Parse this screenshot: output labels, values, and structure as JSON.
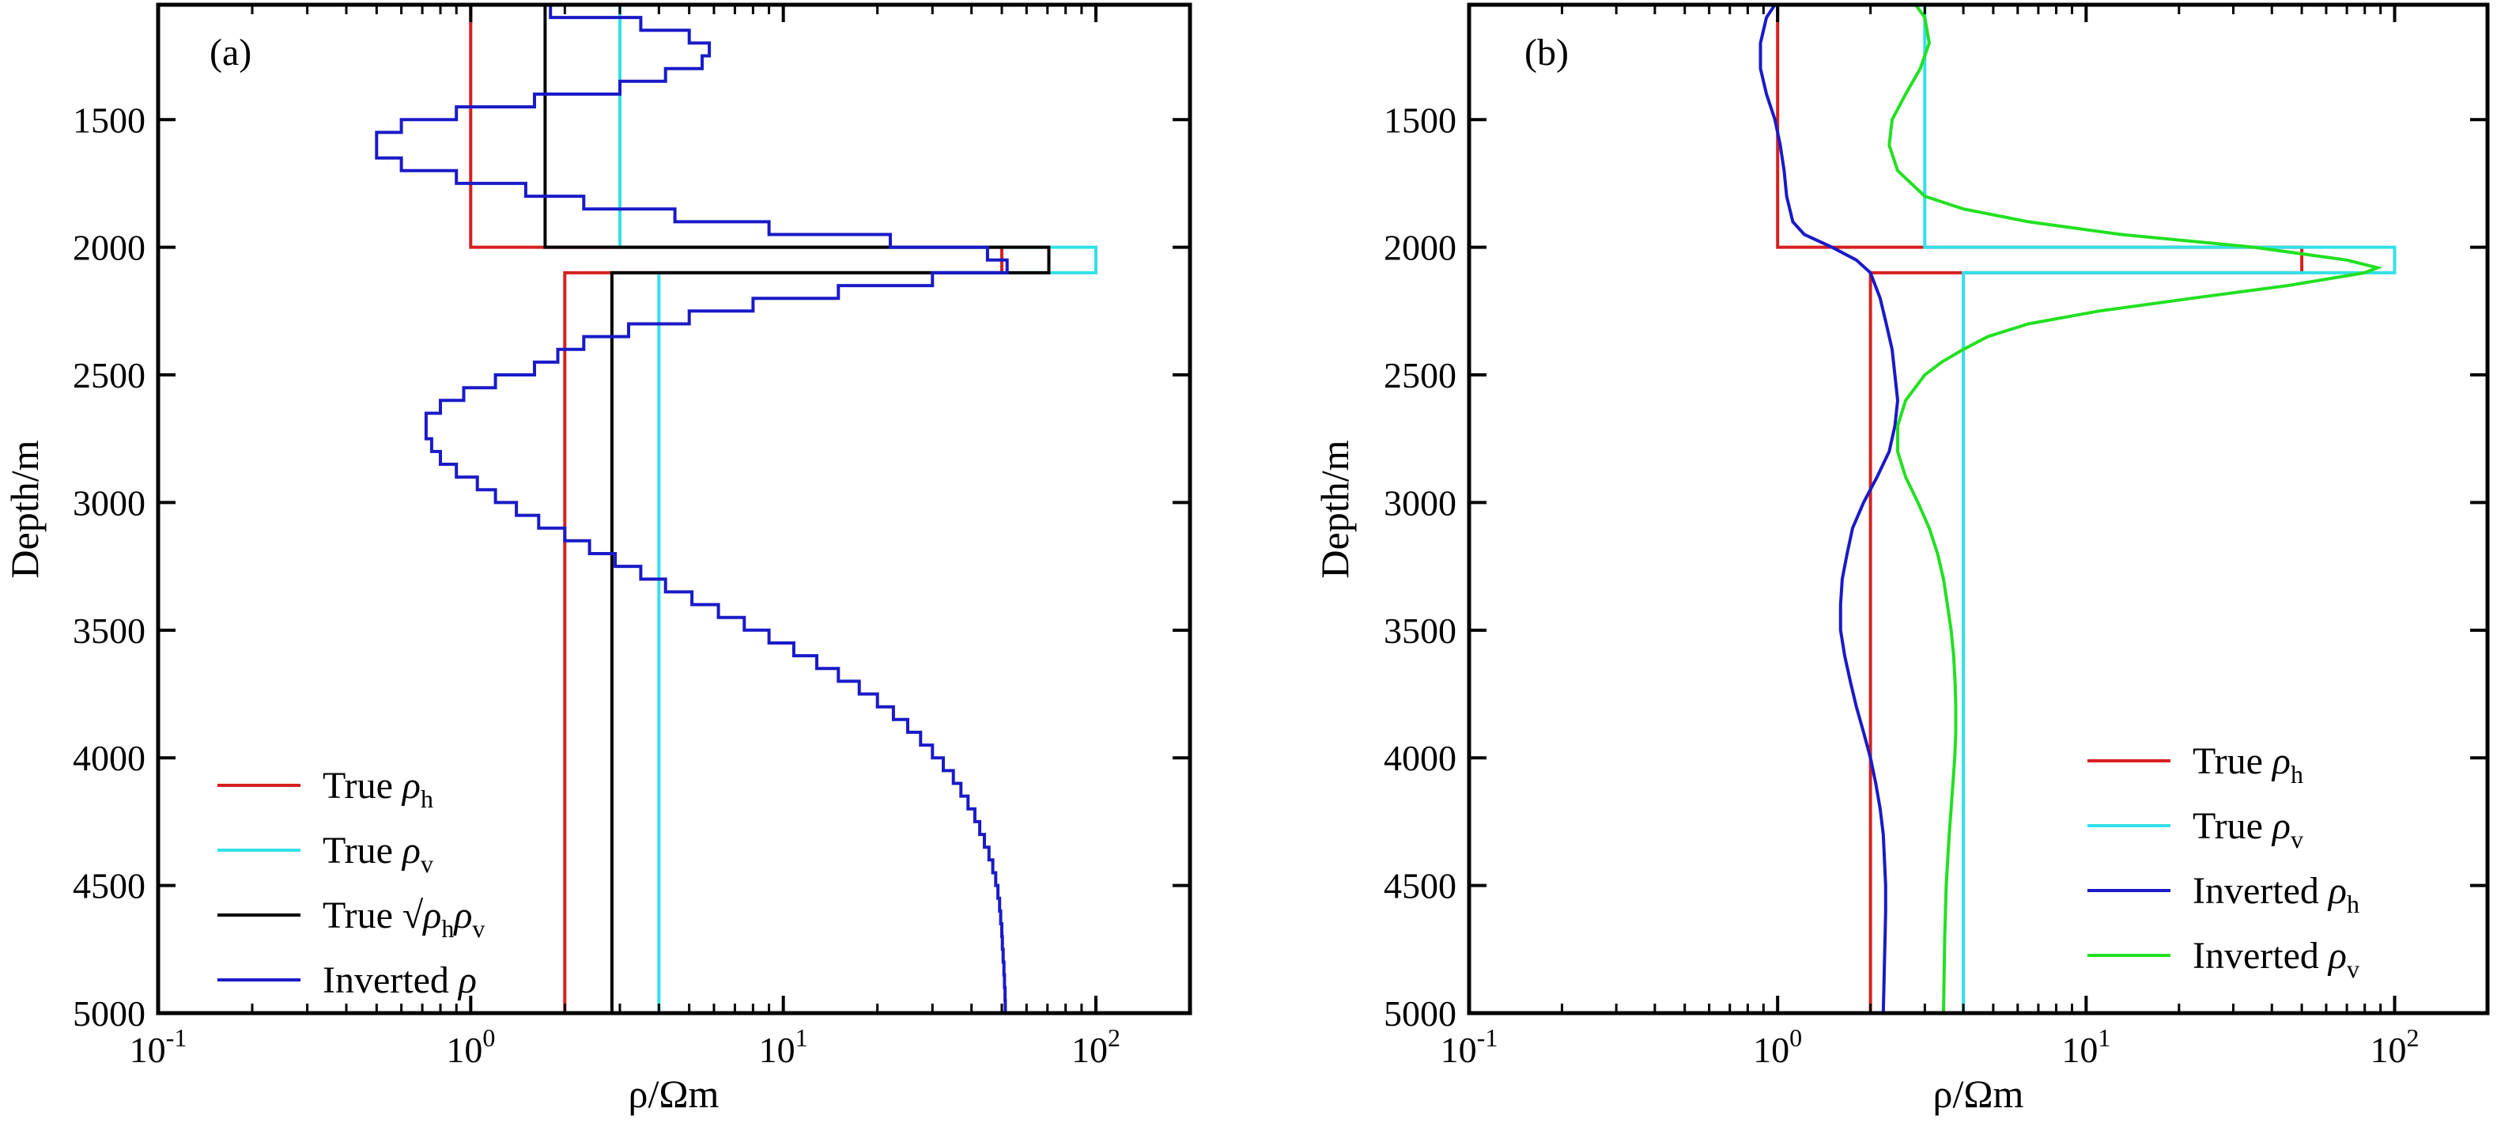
{
  "figure": {
    "panels": [
      {
        "id": "a",
        "panel_label": "(a)",
        "ylabel": "Depth/m",
        "xlabel": "ρ/Ωm",
        "ytick_labels": [
          "1500",
          "2000",
          "2500",
          "3000",
          "3500",
          "4000",
          "4500",
          "5000"
        ],
        "xtick_labels": [
          {
            "base": "10",
            "exp": "-1"
          },
          {
            "base": "10",
            "exp": "0"
          },
          {
            "base": "10",
            "exp": "1"
          },
          {
            "base": "10",
            "exp": "2"
          }
        ],
        "legend": [
          {
            "prefix": "True ",
            "sym": "ρ",
            "sub": "h",
            "color": "#d62020"
          },
          {
            "prefix": "True ",
            "sym": "ρ",
            "sub": "v",
            "color": "#33e0e8"
          },
          {
            "prefix": "True ",
            "sqrt": "√",
            "sym": "ρ",
            "sub": "h",
            "sym2": "ρ",
            "sub2": "v",
            "color": "#000000"
          },
          {
            "prefix": "Inverted ",
            "sym": "ρ",
            "sub": "",
            "color": "#1a1ac8"
          }
        ]
      },
      {
        "id": "b",
        "panel_label": "(b)",
        "ylabel": "Depth/m",
        "xlabel": "ρ/Ωm",
        "ytick_labels": [
          "1500",
          "2000",
          "2500",
          "3000",
          "3500",
          "4000",
          "4500",
          "5000"
        ],
        "xtick_labels": [
          {
            "base": "10",
            "exp": "-1"
          },
          {
            "base": "10",
            "exp": "0"
          },
          {
            "base": "10",
            "exp": "1"
          },
          {
            "base": "10",
            "exp": "2"
          }
        ],
        "legend": [
          {
            "prefix": "True ",
            "sym": "ρ",
            "sub": "h",
            "color": "#d62020"
          },
          {
            "prefix": "True ",
            "sym": "ρ",
            "sub": "v",
            "color": "#33e0e8"
          },
          {
            "prefix": "Inverted ",
            "sym": "ρ",
            "sub": "h",
            "color": "#1a1ac8"
          },
          {
            "prefix": "Inverted ",
            "sym": "ρ",
            "sub": "v",
            "color": "#22e022"
          }
        ]
      }
    ]
  },
  "chart_data": [
    {
      "type": "line",
      "title": "(a)",
      "xlabel": "ρ/Ωm",
      "ylabel": "Depth/m",
      "xscale": "log",
      "xlim": [
        0.1,
        200
      ],
      "ylim": [
        1050,
        5000
      ],
      "y_inverted": true,
      "legend_position": "bottom-left",
      "xticks": [
        0.1,
        1,
        10,
        100
      ],
      "yticks": [
        1500,
        2000,
        2500,
        3000,
        3500,
        4000,
        4500,
        5000
      ],
      "series": [
        {
          "name": "True ρh",
          "color": "#d62020",
          "step": true,
          "depth": [
            1050,
            2000,
            2000,
            2100,
            2100,
            5000
          ],
          "rho": [
            1,
            1,
            50,
            50,
            2,
            2
          ]
        },
        {
          "name": "True ρv",
          "color": "#33e0e8",
          "step": true,
          "depth": [
            1050,
            2000,
            2000,
            2100,
            2100,
            5000
          ],
          "rho": [
            3,
            3,
            100,
            100,
            4,
            4
          ]
        },
        {
          "name": "True √(ρh ρv)",
          "color": "#000000",
          "step": true,
          "depth": [
            1050,
            2000,
            2000,
            2100,
            2100,
            5000
          ],
          "rho": [
            1.73,
            1.73,
            70.7,
            70.7,
            2.83,
            2.83
          ]
        },
        {
          "name": "Inverted ρ",
          "color": "#1a1ac8",
          "step": true,
          "depth": [
            1050,
            1100,
            1150,
            1200,
            1250,
            1300,
            1350,
            1400,
            1450,
            1500,
            1550,
            1600,
            1650,
            1700,
            1750,
            1800,
            1850,
            1900,
            1950,
            2000,
            2050,
            2100,
            2150,
            2200,
            2250,
            2300,
            2350,
            2400,
            2450,
            2500,
            2550,
            2600,
            2650,
            2700,
            2750,
            2800,
            2850,
            2900,
            2950,
            3000,
            3050,
            3100,
            3150,
            3200,
            3250,
            3300,
            3350,
            3400,
            3450,
            3500,
            3550,
            3600,
            3650,
            3700,
            3750,
            3800,
            3850,
            3900,
            3950,
            4000,
            4050,
            4100,
            4150,
            4200,
            4250,
            4300,
            4350,
            4400,
            4450,
            4500,
            4550,
            4600,
            4650,
            4700,
            4750,
            4800,
            4850,
            4900,
            4950,
            5000
          ],
          "rho": [
            1.8,
            3.5,
            5.0,
            5.8,
            5.5,
            4.2,
            3.0,
            1.6,
            0.9,
            0.6,
            0.5,
            0.5,
            0.6,
            0.9,
            1.5,
            2.3,
            4.5,
            9.0,
            22,
            45,
            52,
            30,
            15,
            8,
            5,
            3.2,
            2.3,
            1.9,
            1.6,
            1.2,
            0.95,
            0.8,
            0.72,
            0.72,
            0.75,
            0.8,
            0.9,
            1.05,
            1.2,
            1.4,
            1.65,
            2.0,
            2.4,
            2.9,
            3.5,
            4.2,
            5.1,
            6.2,
            7.5,
            9.0,
            10.8,
            12.8,
            15,
            17.5,
            20,
            22.5,
            25,
            27.5,
            30,
            32.5,
            35,
            37,
            39,
            41,
            42.5,
            44,
            45.5,
            46.8,
            47.8,
            48.6,
            49.2,
            49.6,
            50,
            50.2,
            50.5,
            50.8,
            51,
            51.2,
            51.3,
            51.4
          ]
        }
      ]
    },
    {
      "type": "line",
      "title": "(b)",
      "xlabel": "ρ/Ωm",
      "ylabel": "Depth/m",
      "xscale": "log",
      "xlim": [
        0.1,
        200
      ],
      "ylim": [
        1050,
        5000
      ],
      "y_inverted": true,
      "legend_position": "bottom-right",
      "xticks": [
        0.1,
        1,
        10,
        100
      ],
      "yticks": [
        1500,
        2000,
        2500,
        3000,
        3500,
        4000,
        4500,
        5000
      ],
      "series": [
        {
          "name": "True ρh",
          "color": "#d62020",
          "step": true,
          "depth": [
            1050,
            2000,
            2000,
            2100,
            2100,
            5000
          ],
          "rho": [
            1,
            1,
            50,
            50,
            2,
            2
          ]
        },
        {
          "name": "True ρv",
          "color": "#33e0e8",
          "step": true,
          "depth": [
            1050,
            2000,
            2000,
            2100,
            2100,
            5000
          ],
          "rho": [
            3,
            3,
            100,
            100,
            4,
            4
          ]
        },
        {
          "name": "Inverted ρh",
          "color": "#1a1ac8",
          "step": false,
          "depth": [
            1050,
            1100,
            1200,
            1300,
            1400,
            1500,
            1600,
            1700,
            1800,
            1900,
            1950,
            2000,
            2050,
            2100,
            2200,
            2300,
            2400,
            2500,
            2600,
            2700,
            2800,
            2900,
            3000,
            3100,
            3200,
            3300,
            3400,
            3500,
            3600,
            3700,
            3800,
            3900,
            4000,
            4100,
            4200,
            4300,
            4400,
            4500,
            4600,
            4700,
            4800,
            4900,
            5000
          ],
          "rho": [
            0.98,
            0.92,
            0.88,
            0.88,
            0.92,
            0.98,
            1.02,
            1.05,
            1.07,
            1.12,
            1.22,
            1.5,
            1.8,
            2.0,
            2.15,
            2.25,
            2.35,
            2.4,
            2.45,
            2.4,
            2.3,
            2.1,
            1.9,
            1.75,
            1.68,
            1.62,
            1.6,
            1.6,
            1.65,
            1.72,
            1.8,
            1.9,
            2.0,
            2.08,
            2.15,
            2.2,
            2.22,
            2.24,
            2.24,
            2.23,
            2.22,
            2.21,
            2.2
          ]
        },
        {
          "name": "Inverted ρv",
          "color": "#22e022",
          "step": false,
          "depth": [
            1050,
            1100,
            1200,
            1300,
            1400,
            1500,
            1600,
            1700,
            1800,
            1850,
            1900,
            1950,
            2000,
            2050,
            2080,
            2100,
            2150,
            2200,
            2250,
            2300,
            2350,
            2400,
            2450,
            2500,
            2600,
            2700,
            2800,
            2900,
            3000,
            3100,
            3200,
            3300,
            3400,
            3500,
            3600,
            3700,
            3800,
            3900,
            4000,
            4100,
            4200,
            4300,
            4400,
            4500,
            4600,
            4700,
            4800,
            4900,
            5000
          ],
          "rho": [
            2.8,
            3.0,
            3.1,
            2.9,
            2.6,
            2.35,
            2.3,
            2.45,
            3.0,
            4.0,
            6.5,
            13,
            35,
            70,
            88,
            80,
            45,
            22,
            11,
            6.5,
            4.8,
            4.0,
            3.4,
            3.0,
            2.6,
            2.45,
            2.45,
            2.6,
            2.85,
            3.1,
            3.3,
            3.45,
            3.55,
            3.65,
            3.72,
            3.76,
            3.78,
            3.78,
            3.75,
            3.7,
            3.65,
            3.6,
            3.56,
            3.52,
            3.5,
            3.48,
            3.47,
            3.46,
            3.45
          ]
        }
      ]
    }
  ]
}
